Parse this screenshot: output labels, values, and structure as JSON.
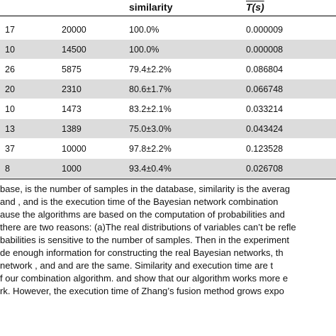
{
  "table": {
    "headers": [
      "",
      "",
      "similarity",
      "T(s)"
    ],
    "rows": [
      {
        "a": "17",
        "samples": "20000",
        "similarity": "100.0%",
        "time": "0.000009",
        "shaded": false
      },
      {
        "a": "10",
        "samples": "14500",
        "similarity": "100.0%",
        "time": "0.000008",
        "shaded": true
      },
      {
        "a": "26",
        "samples": "5875",
        "similarity": "79.4±2.2%",
        "time": "0.086804",
        "shaded": false
      },
      {
        "a": "20",
        "samples": "2310",
        "similarity": "80.6±1.7%",
        "time": "0.066748",
        "shaded": true
      },
      {
        "a": "10",
        "samples": "1473",
        "similarity": "83.2±2.1%",
        "time": "0.033214",
        "shaded": false
      },
      {
        "a": "13",
        "samples": "1389",
        "similarity": "75.0±3.0%",
        "time": "0.043424",
        "shaded": true
      },
      {
        "a": "37",
        "samples": "10000",
        "similarity": "97.8±2.2%",
        "time": "0.123528",
        "shaded": false
      },
      {
        "a": "8",
        "samples": "1000",
        "similarity": "93.4±0.4%",
        "time": "0.026708",
        "shaded": true
      }
    ]
  },
  "caption": [
    "base,  is the number of samples in the database, similarity  is the averag",
    "  and , and  is the execution time of the Bayesian network combination",
    "ause the algorithms are based on the computation of probabilities and",
    " there are two reasons: (a)The real distributions of variables can’t be refle",
    "babilities is sensitive to the number of samples. Then in the experiment",
    "de enough information for constructing the real Bayesian networks, th",
    "network , and  and  are the same. Similarity  and execution time  are t",
    "f our combination algorithm.  and  show that our algorithm works more e",
    "rk. However, the execution time of Zhang’s fusion method grows expo"
  ]
}
